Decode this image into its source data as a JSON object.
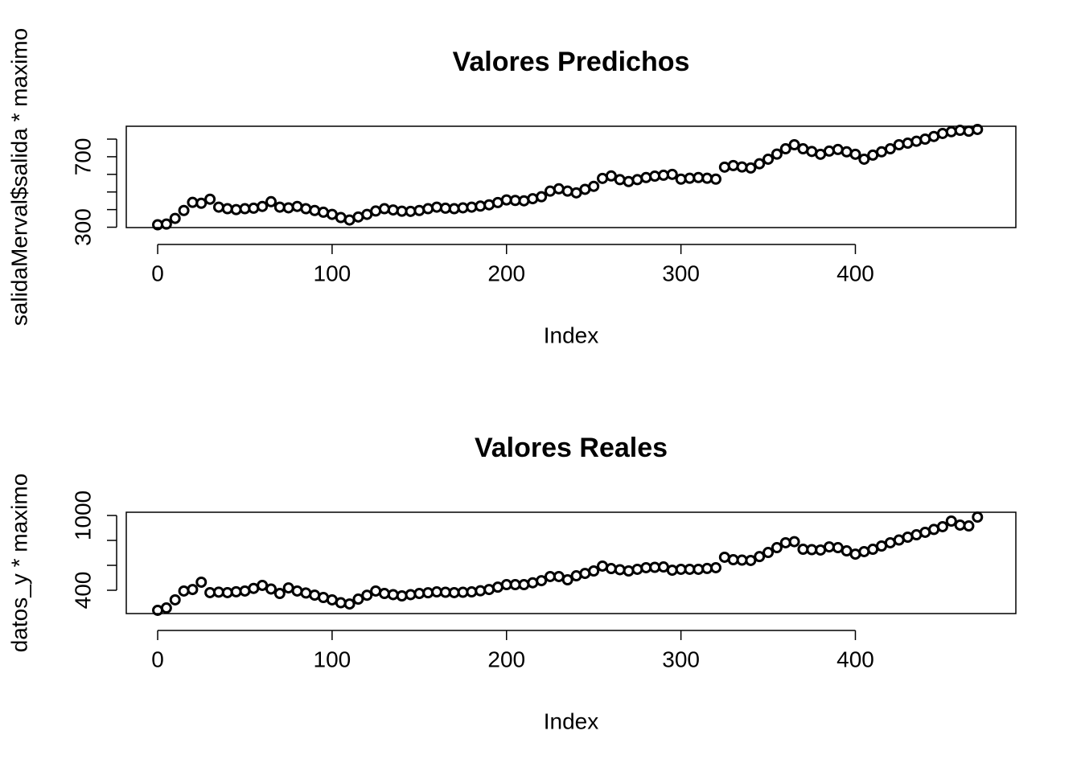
{
  "chart_data": [
    {
      "type": "scatter",
      "title": "Valores Predichos",
      "xlabel": "Index",
      "ylabel": "salidaMerval$salida * maximo",
      "color": "#000000",
      "x": [
        0,
        5,
        10,
        15,
        20,
        25,
        30,
        35,
        40,
        45,
        50,
        55,
        60,
        65,
        70,
        75,
        80,
        85,
        90,
        95,
        100,
        105,
        110,
        115,
        120,
        125,
        130,
        135,
        140,
        145,
        150,
        155,
        160,
        165,
        170,
        175,
        180,
        185,
        190,
        195,
        200,
        205,
        210,
        215,
        220,
        225,
        230,
        235,
        240,
        245,
        250,
        255,
        260,
        265,
        270,
        275,
        280,
        285,
        290,
        295,
        300,
        305,
        310,
        315,
        320,
        325,
        330,
        335,
        340,
        345,
        350,
        355,
        360,
        365,
        370,
        375,
        380,
        385,
        390,
        395,
        400,
        405,
        410,
        415,
        420,
        425,
        430,
        435,
        440,
        445,
        450,
        455,
        460,
        465,
        470
      ],
      "values": [
        314,
        318,
        350,
        395,
        441,
        436,
        459,
        414,
        405,
        400,
        405,
        408,
        418,
        445,
        414,
        410,
        418,
        405,
        395,
        385,
        373,
        355,
        341,
        358,
        373,
        392,
        405,
        398,
        391,
        390,
        395,
        405,
        414,
        408,
        405,
        410,
        414,
        420,
        427,
        440,
        455,
        452,
        450,
        462,
        473,
        505,
        518,
        505,
        495,
        515,
        532,
        577,
        591,
        570,
        559,
        570,
        582,
        590,
        595,
        600,
        573,
        578,
        582,
        578,
        573,
        641,
        650,
        642,
        636,
        660,
        686,
        715,
        745,
        768,
        745,
        730,
        714,
        732,
        741,
        728,
        714,
        686,
        709,
        728,
        745,
        768,
        777,
        788,
        800,
        815,
        832,
        842,
        850,
        845,
        855
      ],
      "xlim": [
        -18,
        492
      ],
      "ylim": [
        298,
        873
      ],
      "xticks": [
        0,
        100,
        200,
        300,
        400
      ],
      "yticks": [
        300,
        700
      ],
      "minor_yticks": [
        400,
        500,
        600,
        800
      ]
    },
    {
      "type": "scatter",
      "title": "Valores Reales",
      "xlabel": "Index",
      "ylabel": "datos_y * maximo",
      "color": "#000000",
      "x": [
        0,
        5,
        10,
        15,
        20,
        25,
        30,
        35,
        40,
        45,
        50,
        55,
        60,
        65,
        70,
        75,
        80,
        85,
        90,
        95,
        100,
        105,
        110,
        115,
        120,
        125,
        130,
        135,
        140,
        145,
        150,
        155,
        160,
        165,
        170,
        175,
        180,
        185,
        190,
        195,
        200,
        205,
        210,
        215,
        220,
        225,
        230,
        235,
        240,
        245,
        250,
        255,
        260,
        265,
        270,
        275,
        280,
        285,
        290,
        295,
        300,
        305,
        310,
        315,
        320,
        325,
        330,
        335,
        340,
        345,
        350,
        355,
        360,
        365,
        370,
        375,
        380,
        385,
        390,
        395,
        400,
        405,
        410,
        415,
        420,
        425,
        430,
        435,
        440,
        445,
        450,
        455,
        460,
        465,
        470
      ],
      "values": [
        239,
        258,
        323,
        394,
        406,
        465,
        381,
        385,
        381,
        388,
        394,
        415,
        439,
        410,
        374,
        419,
        394,
        378,
        361,
        342,
        323,
        300,
        290,
        329,
        360,
        394,
        374,
        365,
        355,
        365,
        374,
        380,
        387,
        384,
        381,
        384,
        387,
        396,
        406,
        425,
        445,
        445,
        445,
        460,
        477,
        510,
        510,
        484,
        516,
        535,
        555,
        594,
        574,
        565,
        555,
        568,
        581,
        584,
        587,
        561,
        568,
        568,
        568,
        575,
        581,
        665,
        645,
        642,
        639,
        670,
        703,
        742,
        781,
        790,
        729,
        726,
        723,
        748,
        742,
        716,
        690,
        710,
        729,
        755,
        781,
        803,
        826,
        845,
        865,
        888,
        910,
        955,
        923,
        916,
        987
      ],
      "xlim": [
        -18,
        492
      ],
      "ylim": [
        213,
        1026
      ],
      "xticks": [
        0,
        100,
        200,
        300,
        400
      ],
      "yticks": [
        400,
        1000
      ],
      "minor_yticks": [
        600,
        800
      ]
    }
  ]
}
